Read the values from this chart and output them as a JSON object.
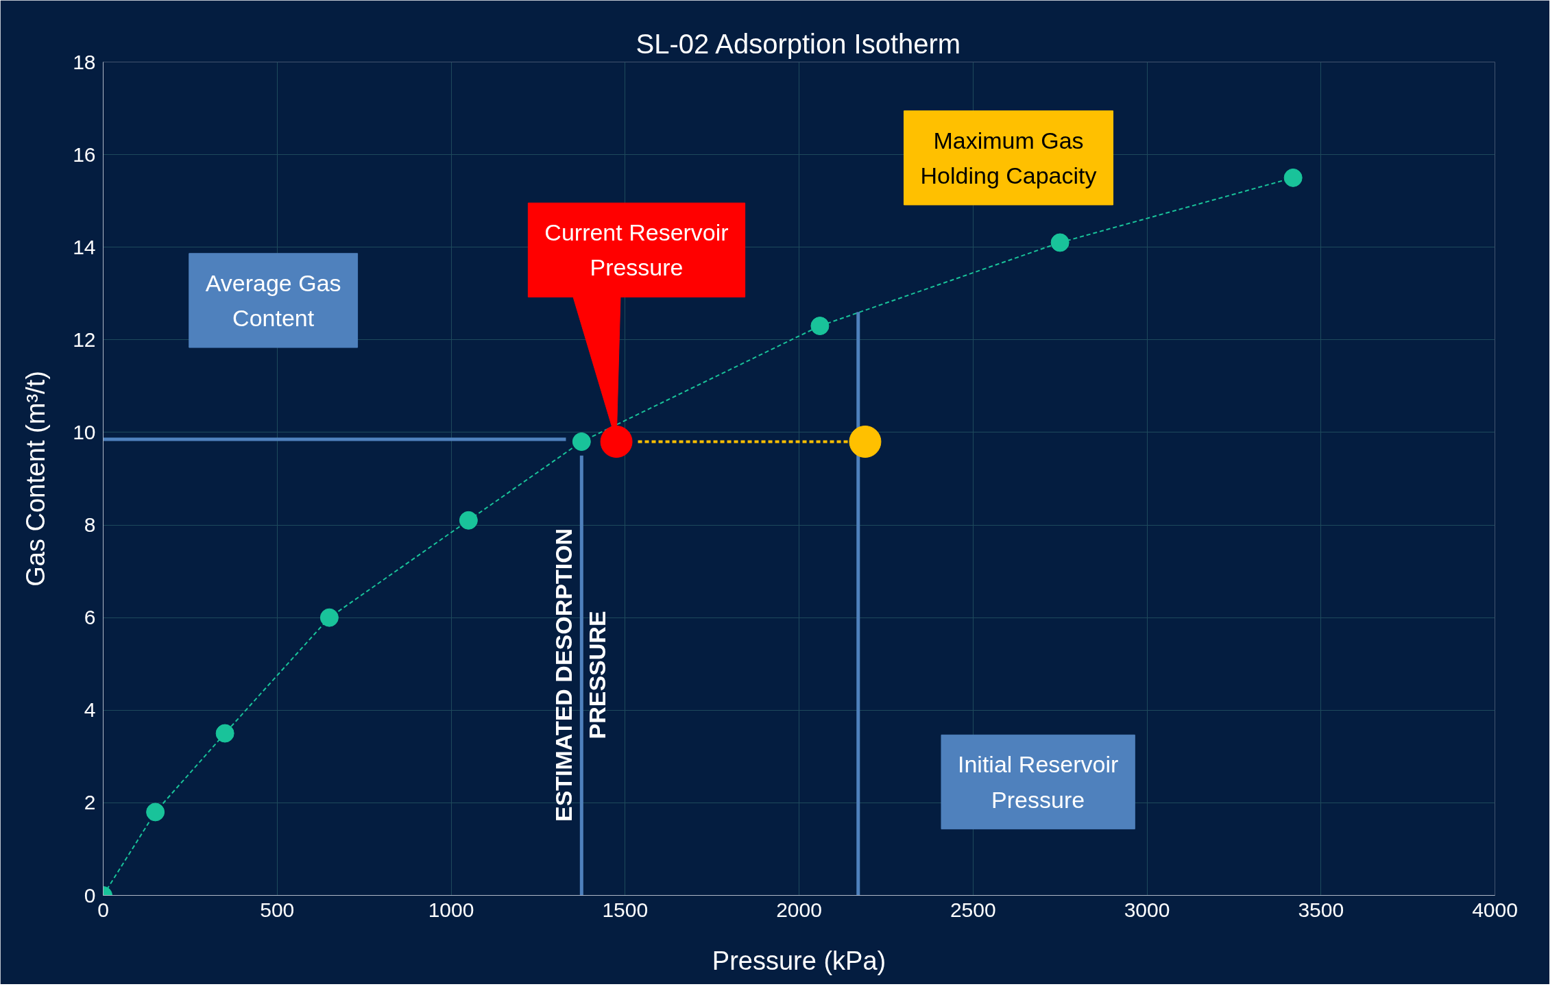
{
  "chart_data": {
    "type": "line",
    "title": "SL-02 Adsorption Isotherm",
    "xlabel": "Pressure (kPa)",
    "ylabel": "Gas Content (m³/t)",
    "xlim": [
      0,
      4000
    ],
    "xticks": [
      0,
      500,
      1000,
      1500,
      2000,
      2500,
      3000,
      3500,
      4000
    ],
    "ylim": [
      0,
      18
    ],
    "yticks": [
      0,
      2,
      4,
      6,
      8,
      10,
      12,
      14,
      16,
      18
    ],
    "grid": true,
    "marker": "circle",
    "line_style": "dashed",
    "series": [
      {
        "color": "#19c39a",
        "x": [
          0,
          150,
          350,
          650,
          1050,
          1375,
          2060,
          2750,
          3420
        ],
        "values": [
          0,
          1.8,
          3.5,
          6.0,
          8.1,
          9.8,
          12.3,
          14.1,
          15.5
        ]
      },
      {
        "type": "line",
        "color": "#4f81bd",
        "marker": "none",
        "line_style": "solid",
        "x": [
          0,
          1330
        ],
        "values": [
          9.85,
          9.85
        ]
      },
      {
        "type": "line",
        "color": "#4f81bd",
        "marker": "none",
        "line_style": "solid",
        "x": [
          1375,
          1375
        ],
        "values": [
          0,
          9.5
        ]
      },
      {
        "type": "line",
        "color": "#4f81bd",
        "marker": "none",
        "line_style": "solid",
        "x": [
          2170,
          2170
        ],
        "values": [
          0,
          12.6
        ]
      },
      {
        "type": "line",
        "color": "#ffc000",
        "marker": "none",
        "line_style": "dashed",
        "x": [
          2140,
          1530
        ],
        "values": [
          9.8,
          9.8
        ]
      },
      {
        "type": "scatter",
        "color": "#ff0000",
        "x": [
          1475
        ],
        "values": [
          9.8
        ]
      },
      {
        "type": "scatter",
        "color": "#ffc000",
        "x": [
          2190
        ],
        "values": [
          9.8
        ]
      }
    ],
    "annotations": [
      "Average Gas Content",
      {
        "text": "Current Reservoir Pressure",
        "x": 1475,
        "y": 9.8
      },
      "Maximum Gas Holding Capacity",
      "Initial Reservoir Pressure",
      "ESTIMATED DESORPTION PRESSURE"
    ]
  }
}
